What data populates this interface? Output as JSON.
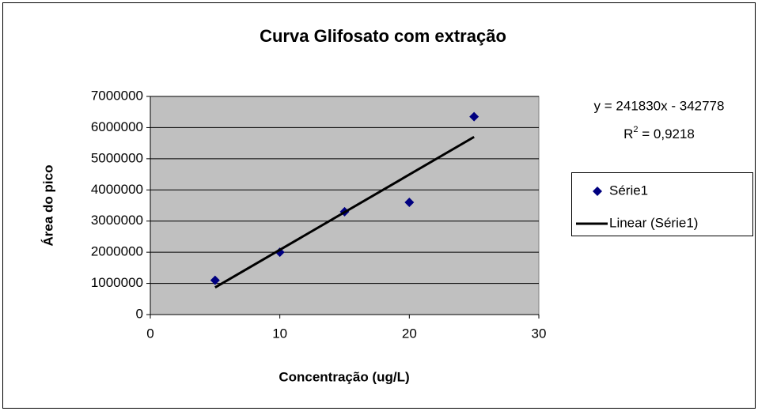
{
  "chart_data": {
    "type": "scatter",
    "title": "Curva Glifosato com extração",
    "x_label": "Concentração (ug/L)",
    "y_label": "Área do pico",
    "series": [
      {
        "name": "Série1",
        "color": "#000080",
        "mode": "markers",
        "x": [
          5,
          10,
          15,
          20,
          25
        ],
        "values": [
          1100000,
          2000000,
          3300000,
          3600000,
          6350000
        ]
      },
      {
        "name": "Linear (Série1)",
        "color": "#000000",
        "mode": "line",
        "x": [
          5,
          25
        ],
        "values": [
          870000,
          5700000
        ]
      }
    ],
    "equation": "y = 241830x - 342778",
    "r2_label": "R",
    "r2_sup": "2",
    "r2_value": " = 0,9218",
    "xlim": [
      0,
      30
    ],
    "xticks": [
      0,
      10,
      20,
      30
    ],
    "ylim": [
      0,
      7000000
    ],
    "yticks": [
      0,
      1000000,
      2000000,
      3000000,
      4000000,
      5000000,
      6000000,
      7000000
    ],
    "grid": true,
    "plot_background": "#c0c0c0",
    "legend": "right"
  }
}
